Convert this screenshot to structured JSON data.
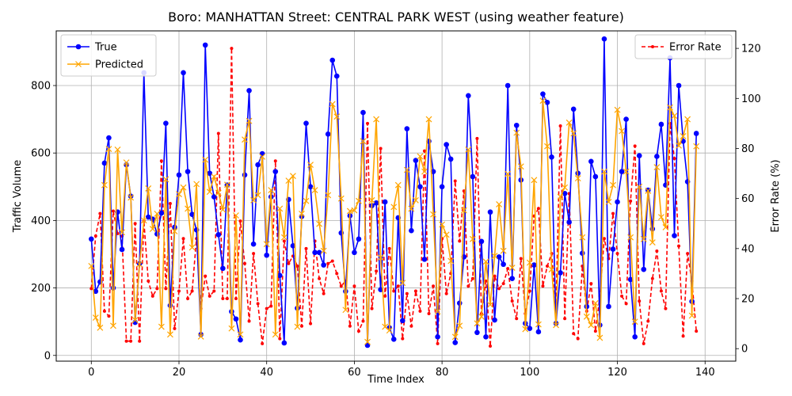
{
  "chart_data": {
    "type": "line",
    "title": "Boro: MANHATTAN Street: CENTRAL PARK WEST (using weather feature)",
    "xlabel": "Time Index",
    "ylabel": "Traffic Volume",
    "y2label": "Error Rate (%)",
    "xlim": [
      -8,
      147
    ],
    "ylim": [
      -17,
      962
    ],
    "y2lim": [
      -5,
      127
    ],
    "xticks": [
      0,
      20,
      40,
      60,
      80,
      100,
      120,
      140
    ],
    "yticks": [
      0,
      200,
      400,
      600,
      800
    ],
    "y2ticks": [
      0,
      20,
      40,
      60,
      80,
      100,
      120
    ],
    "grid": true,
    "legend_left": "top-left",
    "legend_right": "top-right",
    "colors": {
      "true": "#0000ff",
      "predicted": "#ffa500",
      "error": "#ff0000"
    },
    "series": [
      {
        "name": "True",
        "axis": "left",
        "color": "#0000ff",
        "marker": "circle",
        "values": [
          345,
          190,
          218,
          570,
          645,
          200,
          425,
          314,
          565,
          472,
          98,
          272,
          838,
          410,
          404,
          360,
          422,
          688,
          148,
          380,
          535,
          838,
          545,
          418,
          372,
          62,
          920,
          540,
          470,
          358,
          258,
          505,
          130,
          108,
          46,
          535,
          785,
          330,
          565,
          598,
          297,
          470,
          545,
          237,
          37,
          462,
          325,
          140,
          412,
          688,
          500,
          305,
          305,
          268,
          656,
          875,
          828,
          363,
          190,
          414,
          305,
          345,
          720,
          30,
          444,
          452,
          195,
          455,
          82,
          48,
          408,
          103,
          672,
          370,
          578,
          500,
          285,
          635,
          545,
          55,
          500,
          625,
          582,
          38,
          155,
          292,
          770,
          530,
          68,
          338,
          55,
          425,
          105,
          292,
          270,
          800,
          228,
          682,
          520,
          95,
          80,
          268,
          70,
          775,
          750,
          588,
          95,
          245,
          480,
          395,
          730,
          540,
          303,
          145,
          575,
          530,
          90,
          938,
          145,
          315,
          455,
          545,
          700,
          225,
          55,
          592,
          255,
          490,
          375,
          590,
          685,
          505,
          882,
          355,
          800,
          635,
          515,
          160,
          658
        ]
      },
      {
        "name": "Predicted",
        "axis": "left",
        "color": "#ffa500",
        "marker": "x",
        "values": [
          265,
          112,
          82,
          505,
          612,
          88,
          610,
          365,
          572,
          468,
          105,
          270,
          400,
          495,
          375,
          420,
          85,
          522,
          62,
          368,
          478,
          498,
          435,
          320,
          508,
          56,
          580,
          485,
          530,
          482,
          432,
          506,
          80,
          415,
          62,
          640,
          695,
          460,
          475,
          589,
          330,
          490,
          62,
          435,
          350,
          518,
          532,
          85,
          420,
          458,
          565,
          490,
          390,
          310,
          475,
          745,
          708,
          465,
          135,
          428,
          430,
          458,
          635,
          40,
          460,
          700,
          290,
          85,
          74,
          440,
          505,
          215,
          550,
          435,
          460,
          590,
          545,
          700,
          418,
          130,
          388,
          358,
          280,
          55,
          88,
          430,
          610,
          345,
          95,
          115,
          278,
          150,
          295,
          448,
          310,
          538,
          260,
          660,
          560,
          78,
          275,
          520,
          92,
          755,
          620,
          255,
          90,
          470,
          498,
          690,
          658,
          525,
          350,
          115,
          90,
          155,
          52,
          545,
          455,
          505,
          728,
          665,
          545,
          350,
          100,
          500,
          345,
          488,
          335,
          558,
          410,
          380,
          735,
          710,
          622,
          650,
          700,
          118,
          620
        ]
      },
      {
        "name": "Error Rate",
        "axis": "right",
        "color": "#ff0000",
        "marker": "dot",
        "dashed": true,
        "values": [
          24,
          45,
          54,
          15,
          13,
          55,
          46,
          45,
          3,
          3,
          50,
          3,
          51,
          27,
          21,
          24,
          75,
          24,
          58,
          8,
          23,
          44,
          20,
          23,
          44,
          16,
          29,
          21,
          23,
          86,
          20,
          20,
          120,
          20,
          51,
          34,
          11,
          38,
          18,
          2,
          16,
          17,
          75,
          4,
          43,
          34,
          37,
          33,
          9,
          40,
          10,
          43,
          28,
          22,
          34,
          35,
          30,
          25,
          27,
          9,
          25,
          7,
          11,
          90,
          16,
          31,
          80,
          21,
          40,
          23,
          25,
          4,
          22,
          9,
          23,
          15,
          79,
          14,
          25,
          2,
          44,
          22,
          30,
          67,
          43,
          63,
          25,
          28,
          84,
          14,
          27,
          1,
          29,
          24,
          26,
          32,
          19,
          12,
          36,
          14,
          23,
          53,
          56,
          25,
          33,
          38,
          17,
          89,
          12,
          62,
          6,
          4,
          33,
          15,
          26,
          7,
          21,
          44,
          36,
          54,
          38,
          21,
          18,
          59,
          81,
          19,
          2,
          11,
          28,
          39,
          23,
          16,
          90,
          76,
          41,
          5,
          38,
          27,
          7
        ]
      }
    ],
    "legend_left_items": [
      "True",
      "Predicted"
    ],
    "legend_right_items": [
      "Error Rate"
    ]
  }
}
